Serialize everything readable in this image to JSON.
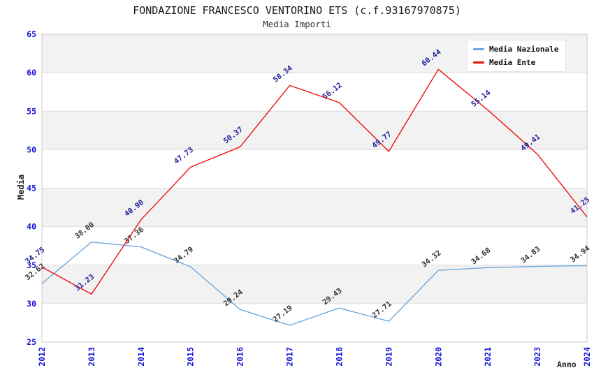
{
  "header": {
    "title": "FONDAZIONE FRANCESCO VENTORINO ETS (c.f.93167970875)",
    "subtitle": "Media Importi"
  },
  "chart_data": {
    "type": "line",
    "title": "FONDAZIONE FRANCESCO VENTORINO ETS (c.f.93167970875)",
    "subtitle": "Media Importi",
    "xlabel": "Anno",
    "ylabel": "Media",
    "x": [
      "2012",
      "2013",
      "2014",
      "2015",
      "2016",
      "2017",
      "2018",
      "2019",
      "2020",
      "2021",
      "2023",
      "2024"
    ],
    "series": [
      {
        "name": "Media Nazionale",
        "color": "#6fa8dc",
        "label_color": "#333333",
        "values": [
          32.62,
          38.0,
          37.36,
          34.79,
          29.24,
          27.19,
          29.43,
          27.71,
          34.32,
          34.68,
          34.83,
          34.94
        ]
      },
      {
        "name": "Media Ente",
        "color": "#ee1111",
        "label_color": "#222299",
        "values": [
          34.75,
          31.23,
          40.9,
          47.73,
          50.37,
          58.34,
          56.12,
          49.77,
          60.44,
          55.14,
          49.41,
          41.25
        ]
      }
    ],
    "ylim": [
      25,
      65
    ],
    "ytick_step": 5,
    "yticks": [
      25,
      30,
      35,
      40,
      45,
      50,
      55,
      60,
      65
    ],
    "grid": true,
    "legend_position": "top-right",
    "colors": {
      "tick_label": "#1414d8",
      "band_gray": "#f2f2f2",
      "band_white": "#ffffff",
      "gridline": "#dddddd",
      "plot_border": "#c8c8c8"
    }
  }
}
